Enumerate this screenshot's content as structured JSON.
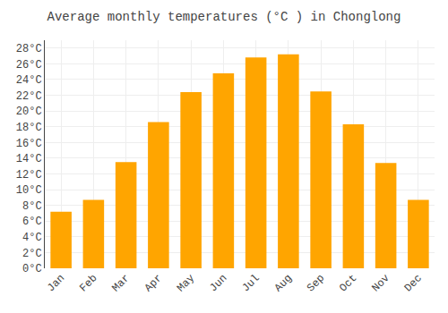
{
  "chart_data": {
    "type": "bar",
    "title": "Average monthly temperatures (°C ) in Chonglong",
    "categories": [
      "Jan",
      "Feb",
      "Mar",
      "Apr",
      "May",
      "Jun",
      "Jul",
      "Aug",
      "Sep",
      "Oct",
      "Nov",
      "Dec"
    ],
    "values": [
      7.2,
      8.7,
      13.5,
      18.6,
      22.4,
      24.8,
      26.8,
      27.2,
      22.5,
      18.3,
      13.4,
      8.7
    ],
    "color": "#FFA500",
    "ylim": [
      0,
      29
    ],
    "yticks": [
      {
        "value": 0,
        "label": "0°C"
      },
      {
        "value": 2,
        "label": "2°C"
      },
      {
        "value": 4,
        "label": "4°C"
      },
      {
        "value": 6,
        "label": "6°C"
      },
      {
        "value": 8,
        "label": "8°C"
      },
      {
        "value": 10,
        "label": "10°C"
      },
      {
        "value": 12,
        "label": "12°C"
      },
      {
        "value": 14,
        "label": "14°C"
      },
      {
        "value": 16,
        "label": "16°C"
      },
      {
        "value": 18,
        "label": "18°C"
      },
      {
        "value": 20,
        "label": "20°C"
      },
      {
        "value": 22,
        "label": "22°C"
      },
      {
        "value": 24,
        "label": "24°C"
      },
      {
        "value": 26,
        "label": "26°C"
      },
      {
        "value": 28,
        "label": "28°C"
      }
    ],
    "grid": true
  }
}
